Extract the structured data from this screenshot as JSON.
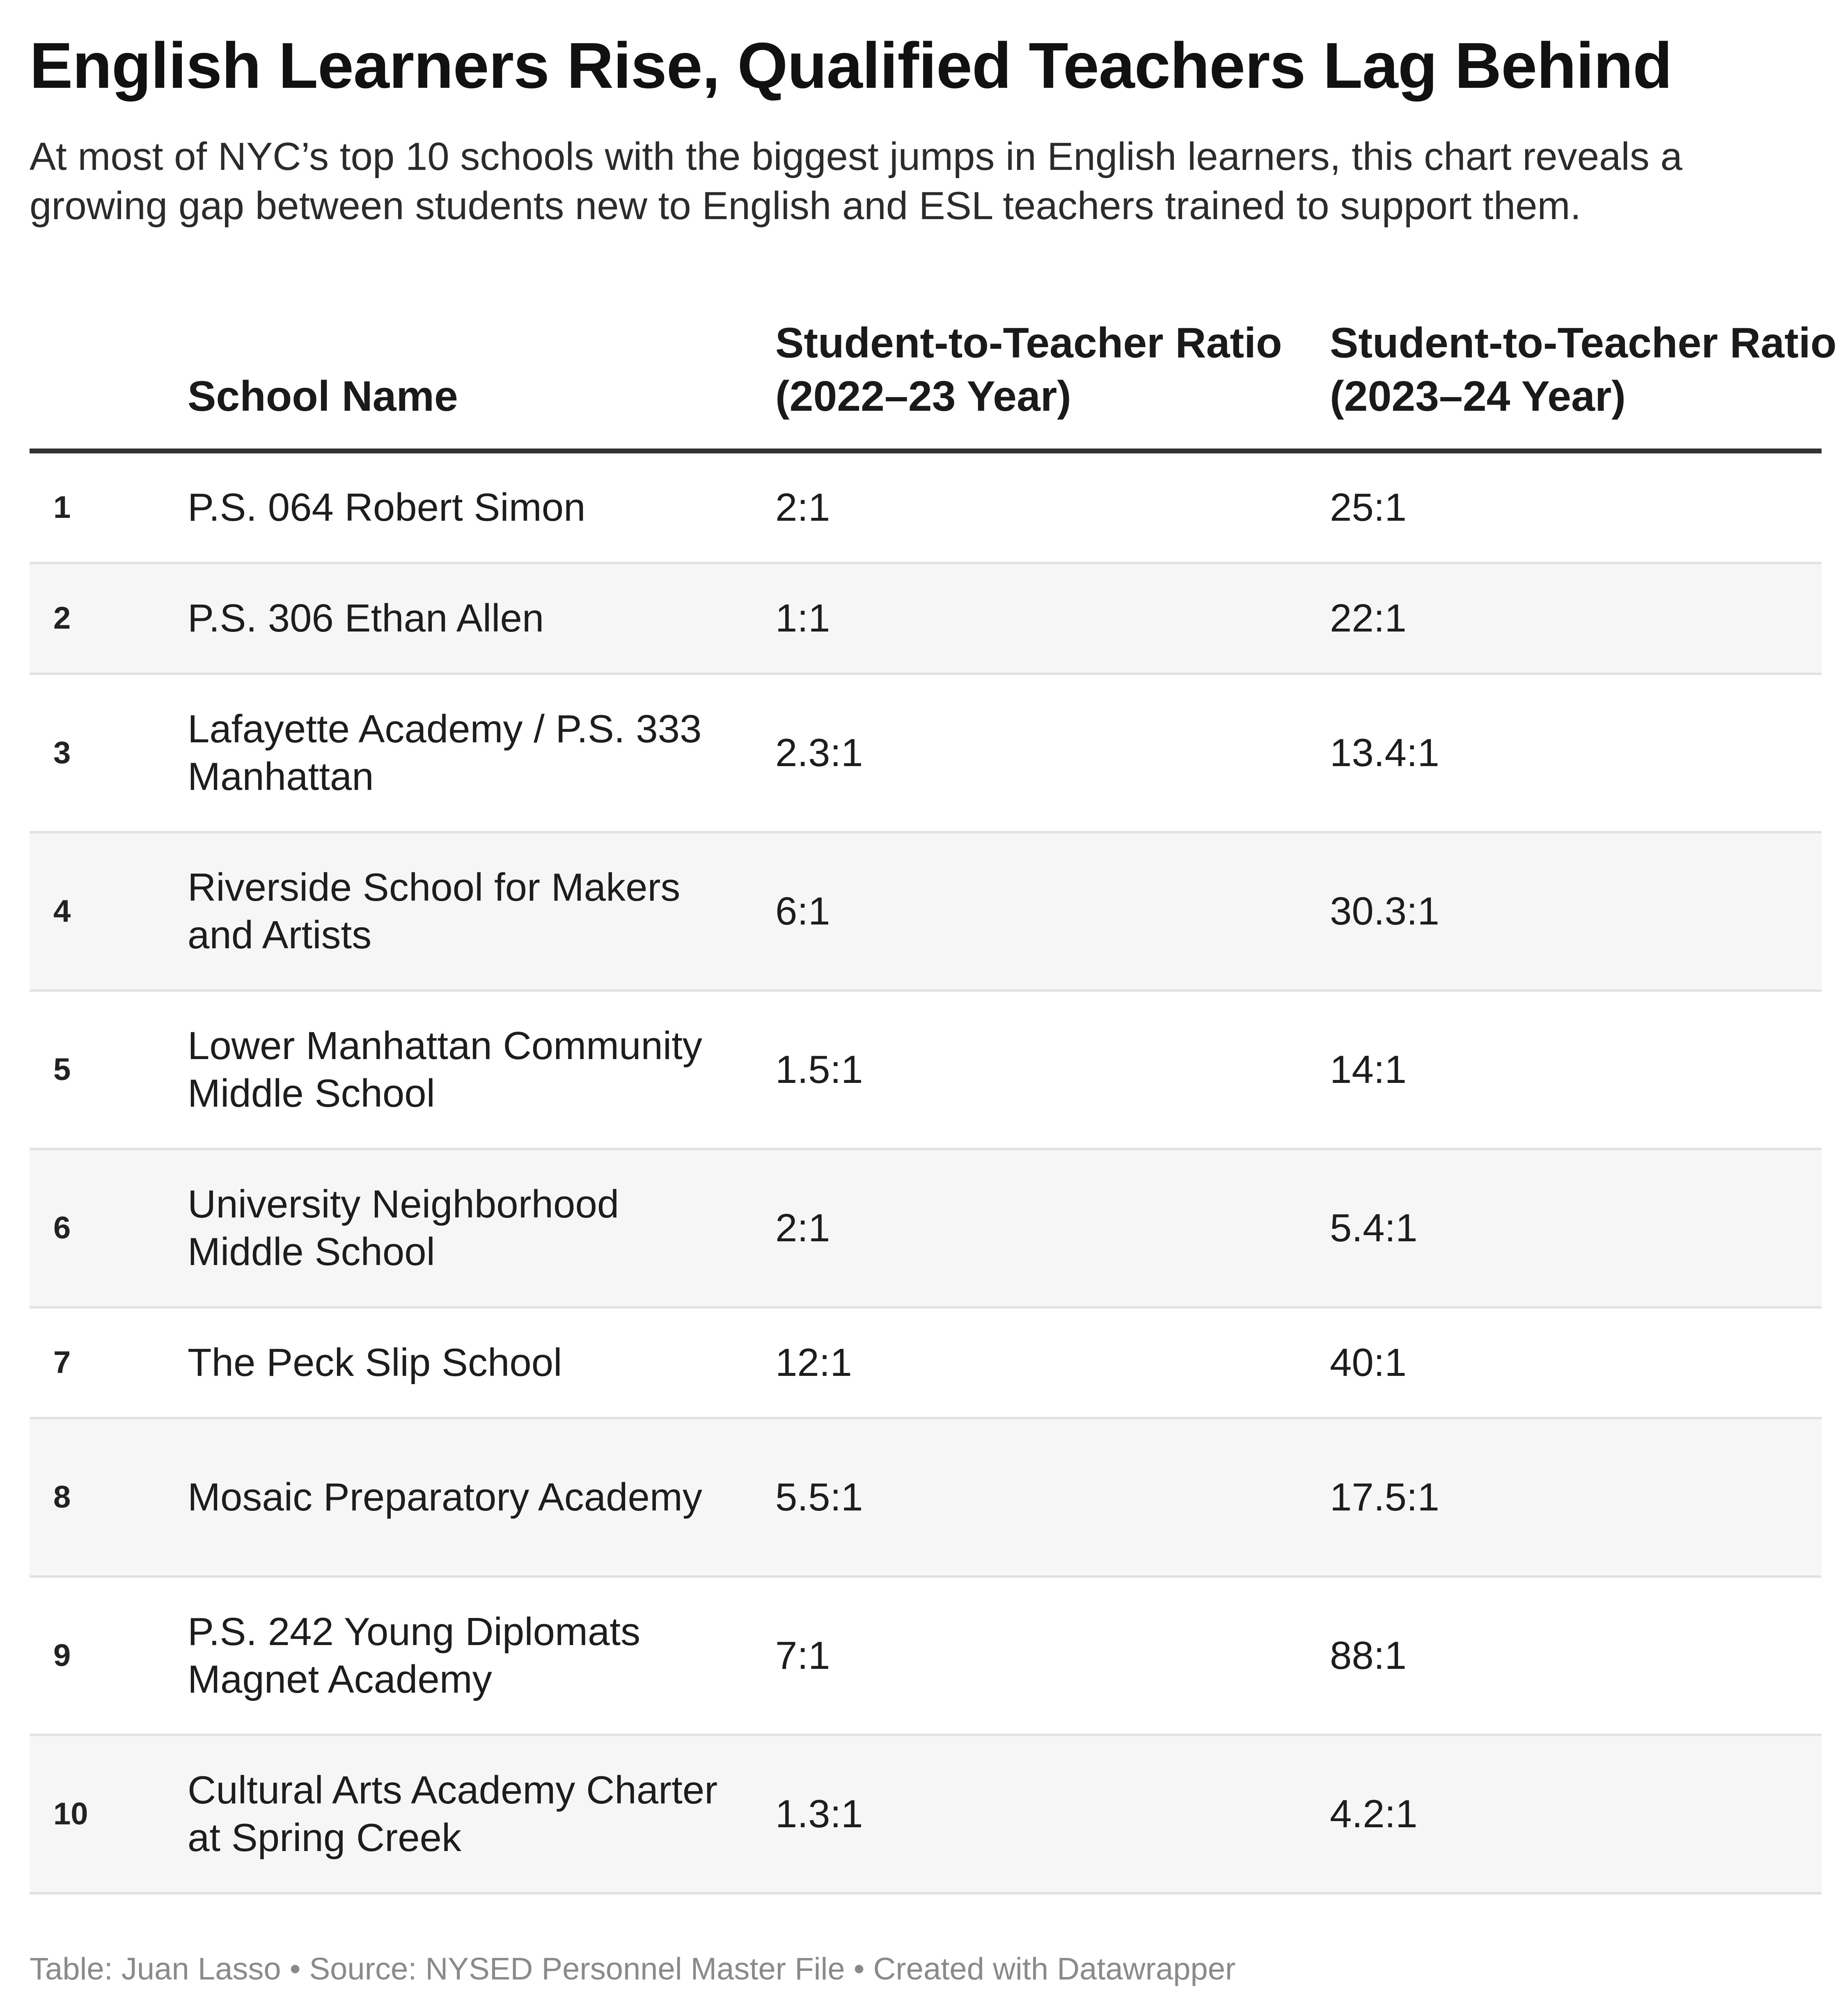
{
  "title": "English Learners Rise, Qualified Teachers Lag Behind",
  "subtitle": "At most of NYC’s top 10 schools with the biggest jumps in English learners, this chart reveals a growing gap between students new to English and ESL teachers trained to support them.",
  "chart_data": {
    "type": "table",
    "columns": [
      "",
      "School Name",
      "Student-to-Teacher Ratio (2022–23 Year)",
      "Student-to-Teacher Ratio (2023–24 Year)"
    ],
    "rows": [
      {
        "rank": "1",
        "school": "P.S. 064 Robert Simon",
        "ratio_2022_23": "2:1",
        "ratio_2023_24": "25:1"
      },
      {
        "rank": "2",
        "school": "P.S. 306 Ethan Allen",
        "ratio_2022_23": "1:1",
        "ratio_2023_24": "22:1"
      },
      {
        "rank": "3",
        "school": "Lafayette Academy / P.S. 333 Manhattan",
        "ratio_2022_23": "2.3:1",
        "ratio_2023_24": "13.4:1"
      },
      {
        "rank": "4",
        "school": "Riverside School for Makers and Artists",
        "ratio_2022_23": "6:1",
        "ratio_2023_24": "30.3:1"
      },
      {
        "rank": "5",
        "school": "Lower Manhattan Community Middle School",
        "ratio_2022_23": "1.5:1",
        "ratio_2023_24": "14:1"
      },
      {
        "rank": "6",
        "school": "University Neighborhood Middle School",
        "ratio_2022_23": "2:1",
        "ratio_2023_24": "5.4:1"
      },
      {
        "rank": "7",
        "school": "The Peck Slip School",
        "ratio_2022_23": "12:1",
        "ratio_2023_24": "40:1"
      },
      {
        "rank": "8",
        "school": "Mosaic Preparatory Academy",
        "ratio_2022_23": "5.5:1",
        "ratio_2023_24": "17.5:1"
      },
      {
        "rank": "9",
        "school": "P.S. 242 Young Diplomats Magnet Academy",
        "ratio_2022_23": "7:1",
        "ratio_2023_24": "88:1"
      },
      {
        "rank": "10",
        "school": "Cultural Arts Academy Charter at Spring Creek",
        "ratio_2022_23": "1.3:1",
        "ratio_2023_24": "4.2:1"
      }
    ]
  },
  "footer": "Table: Juan Lasso  • Source: NYSED Personnel Master File • Created with Datawrapper",
  "colors": {
    "header_rule": "#333333",
    "row_alt_background": "#f6f6f6",
    "row_divider": "#e2e2e2",
    "footer_text": "#8a8a8a"
  }
}
